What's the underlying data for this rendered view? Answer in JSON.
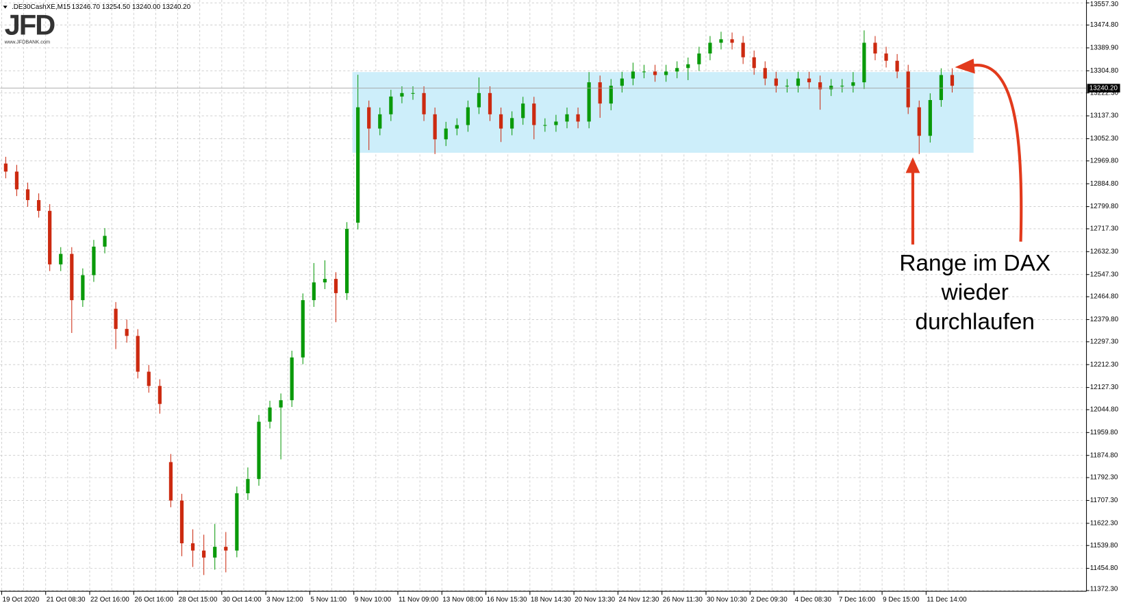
{
  "header": {
    "symbol": ".DE30CashXE,M15",
    "quote": "13246.70 13254.50 13240.00 13240.20"
  },
  "logo": {
    "text": "JFD",
    "url": "www.JFDBANK.com"
  },
  "chart_data": {
    "type": "candlestick",
    "up_color": "#0a9a0a",
    "down_color": "#cc2a10",
    "grid": true,
    "ylim": [
      11372.3,
      13557.3
    ],
    "yticks": [
      {
        "value": 13557.3,
        "label": "13557.30"
      },
      {
        "value": 13474.8,
        "label": "13474.80"
      },
      {
        "value": 13389.9,
        "label": "13389.90"
      },
      {
        "value": 13304.8,
        "label": "13304.80"
      },
      {
        "value": 13222.3,
        "label": "13222.30"
      },
      {
        "value": 13137.3,
        "label": "13137.30"
      },
      {
        "value": 13052.3,
        "label": "13052.30"
      },
      {
        "value": 12969.8,
        "label": "12969.80"
      },
      {
        "value": 12884.8,
        "label": "12884.80"
      },
      {
        "value": 12799.8,
        "label": "12799.80"
      },
      {
        "value": 12717.3,
        "label": "12717.30"
      },
      {
        "value": 12632.3,
        "label": "12632.30"
      },
      {
        "value": 12547.3,
        "label": "12547.30"
      },
      {
        "value": 12464.8,
        "label": "12464.80"
      },
      {
        "value": 12379.8,
        "label": "12379.80"
      },
      {
        "value": 12297.3,
        "label": "12297.30"
      },
      {
        "value": 12212.3,
        "label": "12212.30"
      },
      {
        "value": 12127.3,
        "label": "12127.30"
      },
      {
        "value": 12044.8,
        "label": "12044.80"
      },
      {
        "value": 11959.8,
        "label": "11959.80"
      },
      {
        "value": 11874.8,
        "label": "11874.80"
      },
      {
        "value": 11792.3,
        "label": "11792.30"
      },
      {
        "value": 11707.3,
        "label": "11707.30"
      },
      {
        "value": 11622.3,
        "label": "11622.30"
      },
      {
        "value": 11539.8,
        "label": "11539.80"
      },
      {
        "value": 11454.8,
        "label": "11454.80"
      },
      {
        "value": 11372.3,
        "label": "11372.30"
      }
    ],
    "x_labels": [
      "19 Oct 2020",
      "21 Oct 08:30",
      "22 Oct 16:00",
      "26 Oct 16:00",
      "28 Oct 15:00",
      "30 Oct 14:00",
      "3 Nov 12:00",
      "5 Nov 11:00",
      "9 Nov 10:00",
      "11 Nov 09:00",
      "13 Nov 08:00",
      "16 Nov 15:30",
      "18 Nov 14:30",
      "20 Nov 13:30",
      "24 Nov 12:30",
      "26 Nov 11:30",
      "30 Nov 10:30",
      "2 Dec 09:30",
      "4 Dec 08:30",
      "7 Dec 16:00",
      "9 Dec 15:00",
      "11 Dec 14:00"
    ],
    "open": [
      12960,
      12930,
      12864,
      12824,
      12784,
      12585,
      12624,
      12452,
      12545,
      12651,
      12420,
      12345,
      12319,
      12186,
      12133,
      11850,
      11707,
      11548,
      11521,
      11495,
      11535,
      11521,
      11734,
      11787,
      12000,
      12053,
      12080,
      12239,
      12452,
      12518,
      12531,
      12478,
      12740,
      13169,
      13090,
      13143,
      13209,
      13222,
      13222,
      13143,
      13050,
      13090,
      13103,
      13169,
      13222,
      13143,
      13090,
      13129,
      13183,
      13103,
      13103,
      13116,
      13143,
      13116,
      13262,
      13183,
      13249,
      13276,
      13302,
      13302,
      13289,
      13302,
      13315,
      13329,
      13369,
      13409,
      13422,
      13409,
      13355,
      13315,
      13276,
      13249,
      13249,
      13276,
      13262,
      13236,
      13249,
      13249,
      13262,
      13409,
      13369,
      13342,
      13302,
      13169,
      13063,
      13196,
      13289
    ],
    "high": [
      12985,
      12955,
      12889,
      12849,
      12809,
      12649,
      12649,
      12570,
      12676,
      12720,
      12445,
      12380,
      12344,
      12211,
      12158,
      11880,
      11732,
      11600,
      11580,
      11620,
      11590,
      11759,
      11830,
      12025,
      12078,
      12105,
      12264,
      12477,
      12590,
      12600,
      12556,
      12742,
      13290,
      13194,
      13168,
      13234,
      13247,
      13247,
      13247,
      13168,
      13115,
      13128,
      13194,
      13280,
      13247,
      13168,
      13154,
      13208,
      13208,
      13128,
      13141,
      13168,
      13168,
      13300,
      13287,
      13274,
      13301,
      13335,
      13327,
      13327,
      13327,
      13340,
      13354,
      13394,
      13434,
      13450,
      13447,
      13434,
      13380,
      13340,
      13301,
      13274,
      13301,
      13301,
      13287,
      13274,
      13274,
      13300,
      13455,
      13434,
      13394,
      13367,
      13327,
      13194,
      13221,
      13314,
      13314
    ],
    "low": [
      12905,
      12839,
      12799,
      12759,
      12560,
      12560,
      12330,
      12427,
      12520,
      12626,
      12270,
      12294,
      12161,
      12108,
      12030,
      11682,
      11500,
      11460,
      11430,
      11450,
      11440,
      11496,
      11709,
      11762,
      11975,
      11860,
      12055,
      12214,
      12427,
      12493,
      12370,
      12453,
      12715,
      13010,
      13065,
      13118,
      13184,
      13197,
      13118,
      12995,
      13025,
      13065,
      13078,
      13144,
      13118,
      13040,
      13065,
      13104,
      13050,
      13078,
      13078,
      13091,
      13091,
      13091,
      13130,
      13158,
      13224,
      13251,
      13277,
      13264,
      13264,
      13277,
      13270,
      13304,
      13344,
      13384,
      13384,
      13330,
      13290,
      13251,
      13224,
      13224,
      13224,
      13237,
      13160,
      13211,
      13224,
      13224,
      13237,
      13344,
      13317,
      13277,
      13144,
      12995,
      13038,
      13171,
      13224
    ],
    "close": [
      12930,
      12864,
      12824,
      12784,
      12585,
      12624,
      12452,
      12545,
      12651,
      12691,
      12345,
      12319,
      12186,
      12133,
      12066,
      11707,
      11548,
      11521,
      11495,
      11535,
      11521,
      11734,
      11787,
      12000,
      12053,
      12080,
      12239,
      12452,
      12518,
      12531,
      12478,
      12717,
      13169,
      13090,
      13143,
      13209,
      13222,
      13222,
      13143,
      13050,
      13090,
      13103,
      13169,
      13222,
      13143,
      13090,
      13129,
      13183,
      13103,
      13103,
      13116,
      13143,
      13116,
      13262,
      13183,
      13249,
      13276,
      13302,
      13302,
      13289,
      13302,
      13315,
      13329,
      13369,
      13409,
      13422,
      13409,
      13355,
      13315,
      13276,
      13249,
      13249,
      13276,
      13262,
      13236,
      13249,
      13249,
      13262,
      13409,
      13369,
      13342,
      13302,
      13169,
      13063,
      13196,
      13289,
      13249
    ],
    "last_price": {
      "value": 13240.2,
      "label": "13240.20"
    },
    "range_low": 13000,
    "range_high": 13300,
    "range_color": "#cdeefa",
    "annotation_lines": [
      "Range im DAX",
      "wieder",
      "durchlaufen"
    ],
    "annotation_color": "#e23a1c"
  }
}
